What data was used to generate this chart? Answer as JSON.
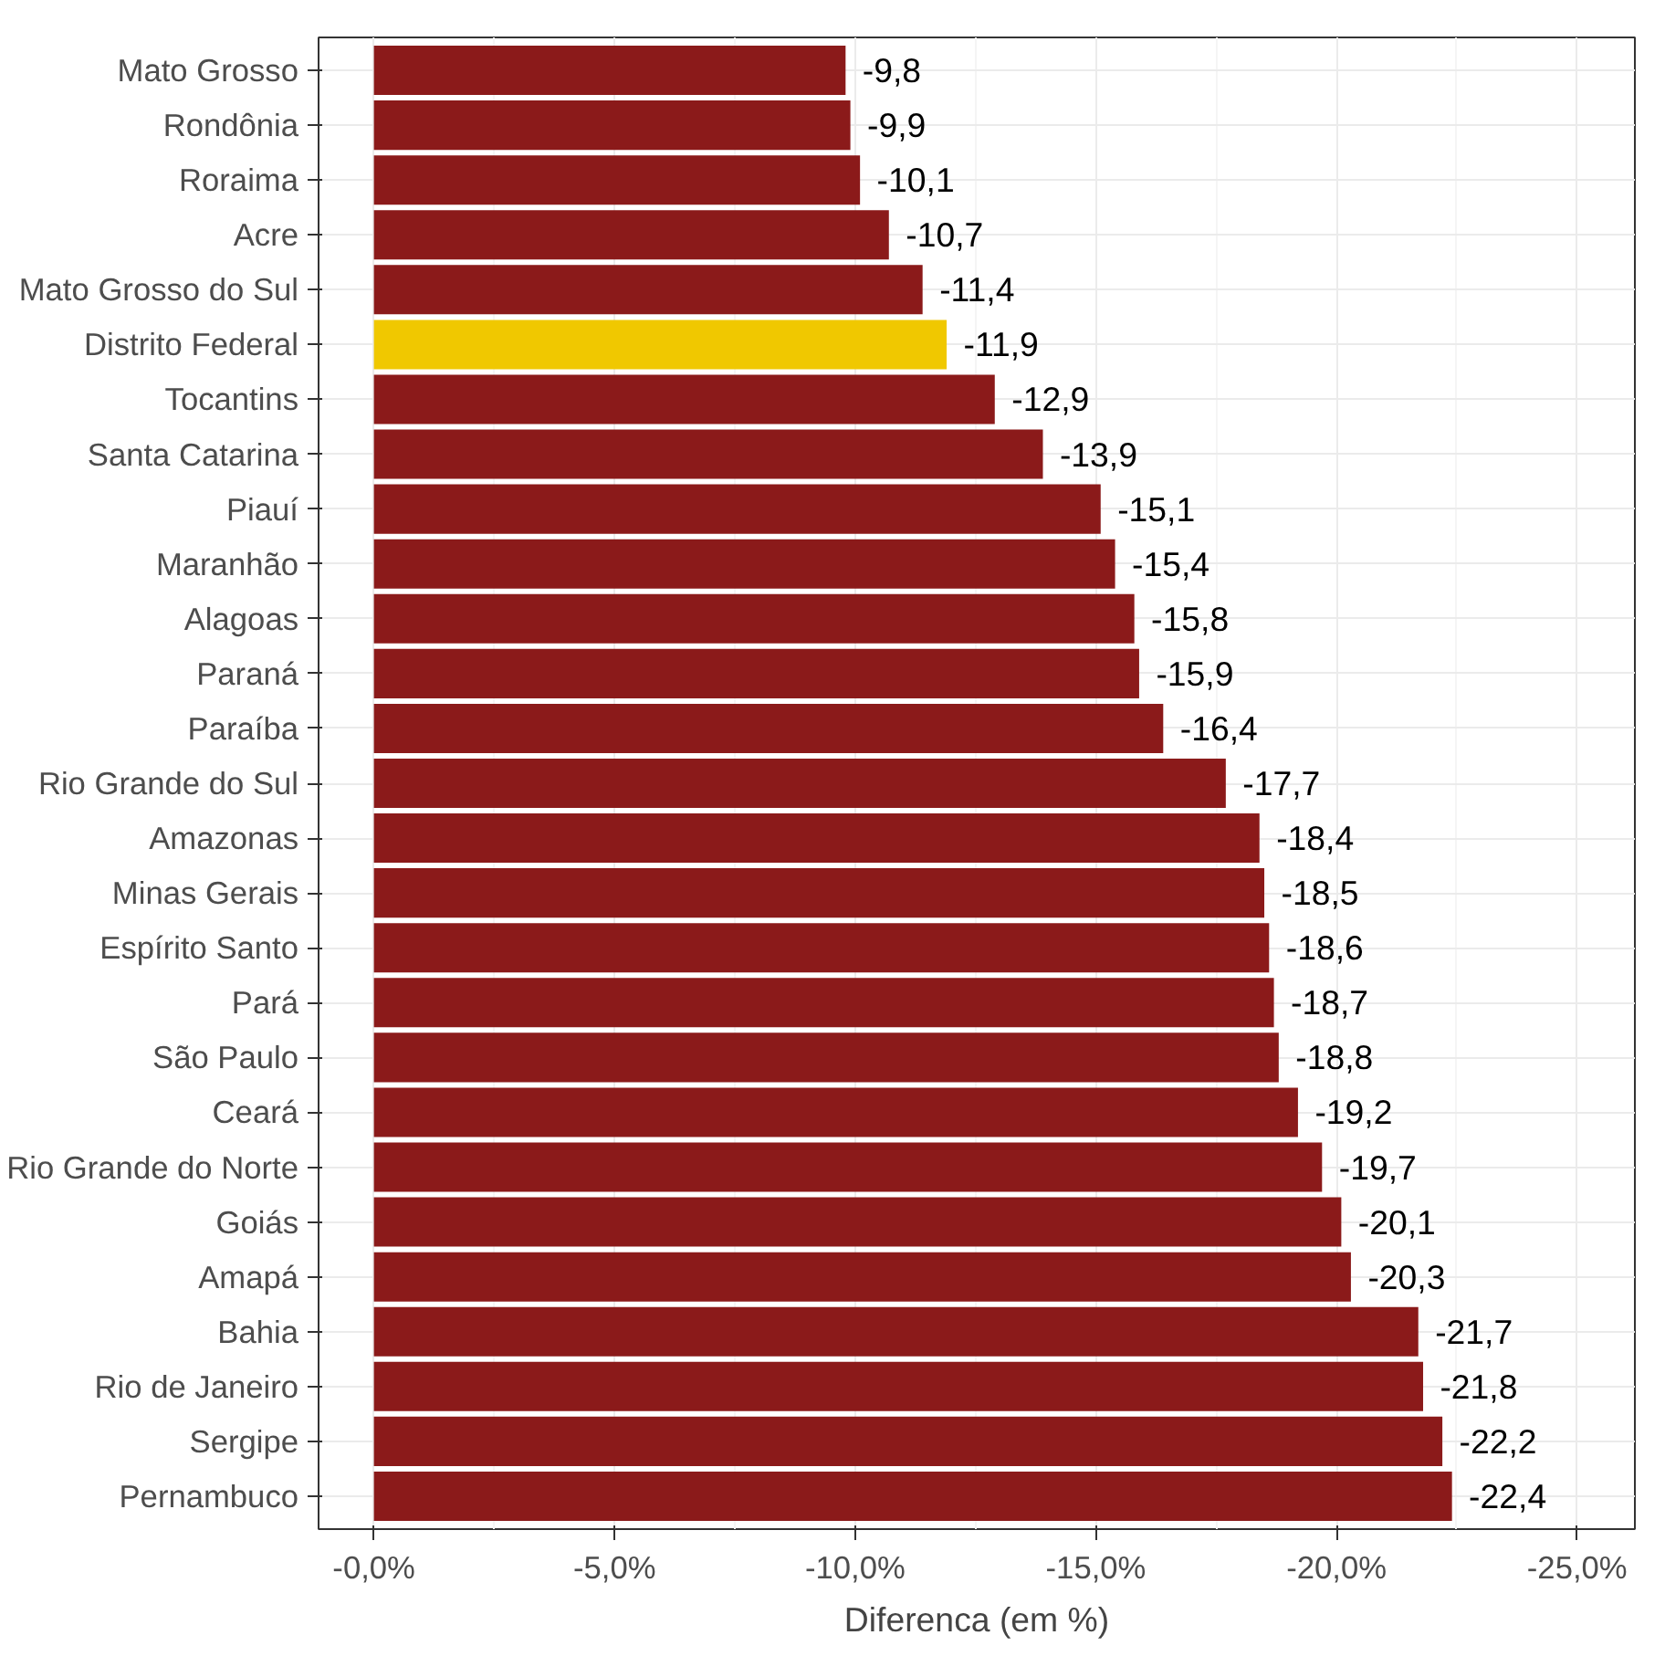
{
  "chart_data": {
    "type": "bar",
    "orientation": "horizontal",
    "xlabel": "Diferenca (em %)",
    "categories": [
      "Mato Grosso",
      "Rondônia",
      "Roraima",
      "Acre",
      "Mato Grosso do Sul",
      "Distrito Federal",
      "Tocantins",
      "Santa Catarina",
      "Piauí",
      "Maranhão",
      "Alagoas",
      "Paraná",
      "Paraíba",
      "Rio Grande do Sul",
      "Amazonas",
      "Minas Gerais",
      "Espírito Santo",
      "Pará",
      "São Paulo",
      "Ceará",
      "Rio Grande do Norte",
      "Goiás",
      "Amapá",
      "Bahia",
      "Rio de Janeiro",
      "Sergipe",
      "Pernambuco"
    ],
    "values": [
      -9.8,
      -9.9,
      -10.1,
      -10.7,
      -11.4,
      -11.9,
      -12.9,
      -13.9,
      -15.1,
      -15.4,
      -15.8,
      -15.9,
      -16.4,
      -17.7,
      -18.4,
      -18.5,
      -18.6,
      -18.7,
      -18.8,
      -19.2,
      -19.7,
      -20.1,
      -20.3,
      -21.7,
      -21.8,
      -22.2,
      -22.4
    ],
    "value_labels": [
      "-9,8",
      "-9,9",
      "-10,1",
      "-10,7",
      "-11,4",
      "-11,9",
      "-12,9",
      "-13,9",
      "-15,1",
      "-15,4",
      "-15,8",
      "-15,9",
      "-16,4",
      "-17,7",
      "-18,4",
      "-18,5",
      "-18,6",
      "-18,7",
      "-18,8",
      "-19,2",
      "-19,7",
      "-20,1",
      "-20,3",
      "-21,7",
      "-21,8",
      "-22,2",
      "-22,4"
    ],
    "colors": [
      "#8b1a1a",
      "#8b1a1a",
      "#8b1a1a",
      "#8b1a1a",
      "#8b1a1a",
      "#f0c800",
      "#8b1a1a",
      "#8b1a1a",
      "#8b1a1a",
      "#8b1a1a",
      "#8b1a1a",
      "#8b1a1a",
      "#8b1a1a",
      "#8b1a1a",
      "#8b1a1a",
      "#8b1a1a",
      "#8b1a1a",
      "#8b1a1a",
      "#8b1a1a",
      "#8b1a1a",
      "#8b1a1a",
      "#8b1a1a",
      "#8b1a1a",
      "#8b1a1a",
      "#8b1a1a",
      "#8b1a1a",
      "#8b1a1a"
    ],
    "xlim": [
      1.15,
      -26.2
    ],
    "xticks": [
      {
        "value": 0,
        "label": "-0,0%"
      },
      {
        "value": -5,
        "label": "-5,0%"
      },
      {
        "value": -10,
        "label": "-10,0%"
      },
      {
        "value": -15,
        "label": "-15,0%"
      },
      {
        "value": -20,
        "label": "-20,0%"
      },
      {
        "value": -25,
        "label": "-25,0%"
      }
    ],
    "grid": true
  }
}
